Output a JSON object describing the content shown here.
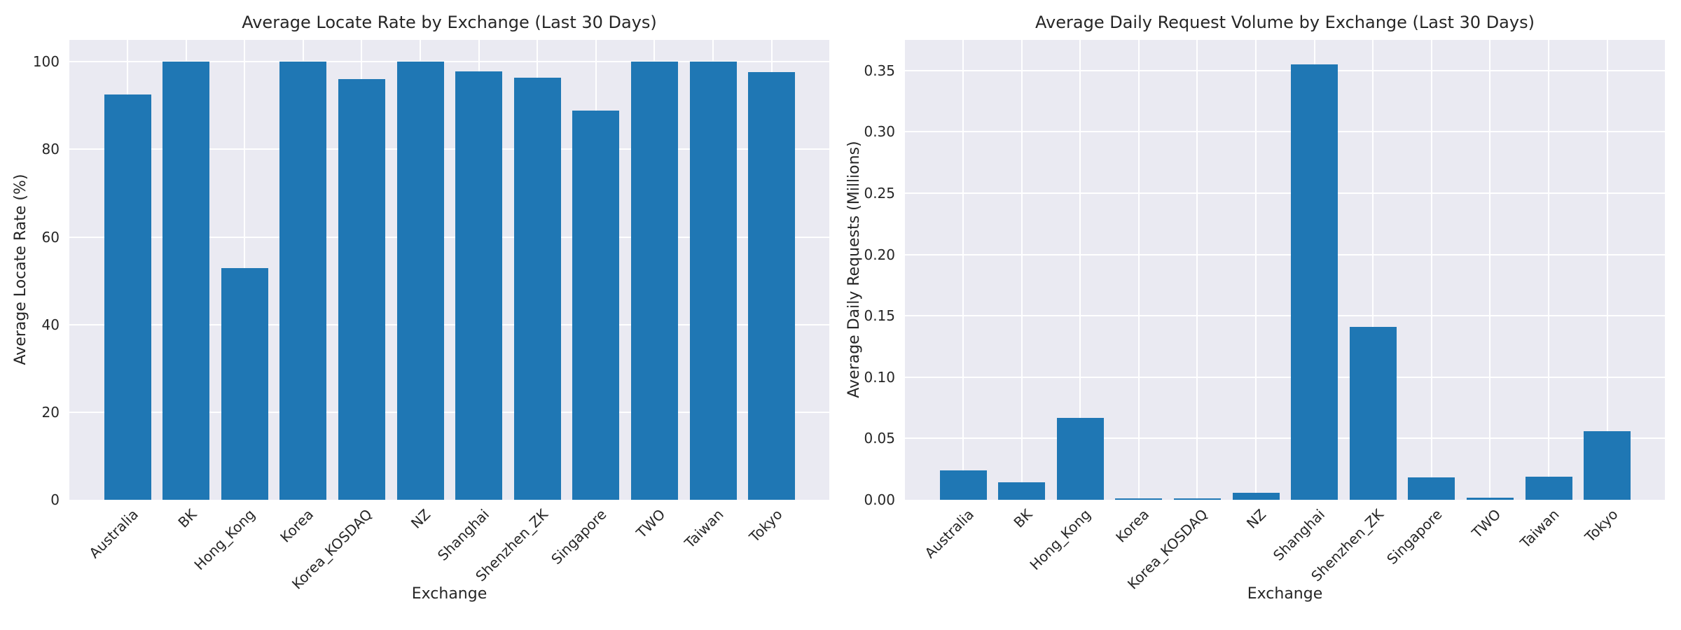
{
  "style": {
    "bar_color": "#1f77b4",
    "plot_background": "#eaeaf2",
    "grid_color": "#ffffff",
    "text_color": "#262626",
    "figure_background": "#ffffff"
  },
  "chart_data": [
    {
      "type": "bar",
      "title": "Average Locate Rate by Exchange (Last 30 Days)",
      "xlabel": "Exchange",
      "ylabel": "Average Locate Rate (%)",
      "categories": [
        "Australia",
        "BK",
        "Hong_Kong",
        "Korea",
        "Korea_KOSDAQ",
        "NZ",
        "Shanghai",
        "Shenzhen_ZK",
        "Singapore",
        "TWO",
        "Taiwan",
        "Tokyo"
      ],
      "values": [
        92.6,
        100,
        52.9,
        100,
        96.0,
        100,
        97.8,
        96.3,
        88.9,
        100,
        100,
        97.7
      ],
      "ylim": [
        0,
        105
      ],
      "yticks": [
        0,
        20,
        40,
        60,
        80,
        100
      ],
      "ytick_labels": [
        "0",
        "20",
        "40",
        "60",
        "80",
        "100"
      ],
      "grid": "on",
      "legend": "none"
    },
    {
      "type": "bar",
      "title": "Average Daily Request Volume by Exchange (Last 30 Days)",
      "xlabel": "Exchange",
      "ylabel": "Average Daily Requests (Millions)",
      "categories": [
        "Australia",
        "BK",
        "Hong_Kong",
        "Korea",
        "Korea_KOSDAQ",
        "NZ",
        "Shanghai",
        "Shenzhen_ZK",
        "Singapore",
        "TWO",
        "Taiwan",
        "Tokyo"
      ],
      "values": [
        0.024,
        0.014,
        0.067,
        0.001,
        0.001,
        0.006,
        0.355,
        0.141,
        0.018,
        0.002,
        0.019,
        0.056
      ],
      "ylim": [
        0,
        0.375
      ],
      "yticks": [
        0,
        0.05,
        0.1,
        0.15,
        0.2,
        0.25,
        0.3,
        0.35
      ],
      "ytick_labels": [
        "0.00",
        "0.05",
        "0.10",
        "0.15",
        "0.20",
        "0.25",
        "0.30",
        "0.35"
      ],
      "grid": "on",
      "legend": "none"
    }
  ]
}
